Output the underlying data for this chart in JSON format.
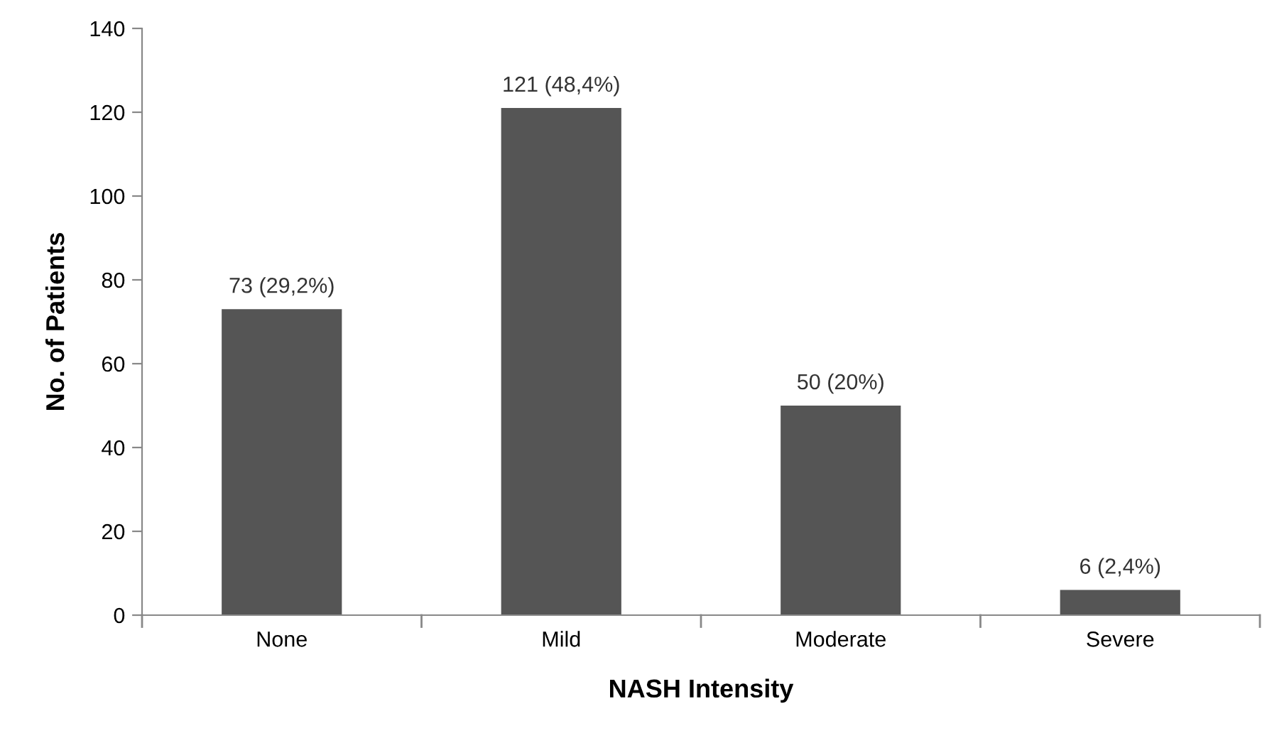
{
  "chart_data": {
    "type": "bar",
    "xlabel": "NASH Intensity",
    "ylabel": "No. of Patients",
    "categories": [
      "None",
      "Mild",
      "Moderate",
      "Severe"
    ],
    "values": [
      73,
      121,
      50,
      6
    ],
    "value_labels": [
      "73 (29,2%)",
      "121 (48,4%)",
      "50 (20%)",
      "6 (2,4%)"
    ],
    "color": "#555555",
    "ylim": [
      0,
      140
    ],
    "yticks": [
      0,
      20,
      40,
      60,
      80,
      100,
      120,
      140
    ],
    "grid": false,
    "legend": false
  }
}
